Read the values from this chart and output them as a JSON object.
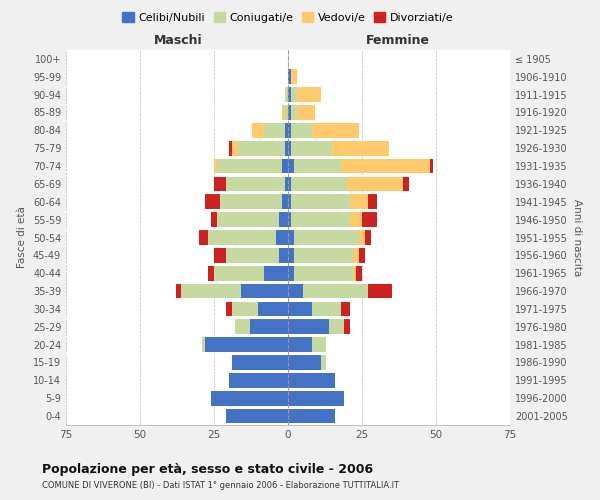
{
  "age_groups": [
    "0-4",
    "5-9",
    "10-14",
    "15-19",
    "20-24",
    "25-29",
    "30-34",
    "35-39",
    "40-44",
    "45-49",
    "50-54",
    "55-59",
    "60-64",
    "65-69",
    "70-74",
    "75-79",
    "80-84",
    "85-89",
    "90-94",
    "95-99",
    "100+"
  ],
  "birth_years": [
    "2001-2005",
    "1996-2000",
    "1991-1995",
    "1986-1990",
    "1981-1985",
    "1976-1980",
    "1971-1975",
    "1966-1970",
    "1961-1965",
    "1956-1960",
    "1951-1955",
    "1946-1950",
    "1941-1945",
    "1936-1940",
    "1931-1935",
    "1926-1930",
    "1921-1925",
    "1916-1920",
    "1911-1915",
    "1906-1910",
    "≤ 1905"
  ],
  "maschi": {
    "celibi": [
      21,
      26,
      20,
      19,
      28,
      13,
      10,
      16,
      8,
      3,
      4,
      3,
      2,
      1,
      2,
      1,
      1,
      0,
      0,
      0,
      0
    ],
    "coniugati": [
      0,
      0,
      0,
      0,
      1,
      5,
      9,
      20,
      17,
      18,
      23,
      21,
      21,
      20,
      22,
      16,
      7,
      1,
      1,
      0,
      0
    ],
    "vedovi": [
      0,
      0,
      0,
      0,
      0,
      0,
      0,
      0,
      0,
      0,
      0,
      0,
      0,
      0,
      1,
      2,
      4,
      1,
      0,
      0,
      0
    ],
    "divorziati": [
      0,
      0,
      0,
      0,
      0,
      0,
      2,
      2,
      2,
      4,
      3,
      2,
      5,
      4,
      0,
      1,
      0,
      0,
      0,
      0,
      0
    ]
  },
  "femmine": {
    "nubili": [
      16,
      19,
      16,
      11,
      8,
      14,
      8,
      5,
      2,
      2,
      2,
      1,
      1,
      1,
      2,
      1,
      1,
      1,
      1,
      1,
      0
    ],
    "coniugate": [
      0,
      0,
      0,
      2,
      5,
      5,
      10,
      22,
      20,
      20,
      22,
      20,
      20,
      19,
      16,
      14,
      7,
      2,
      2,
      0,
      0
    ],
    "vedove": [
      0,
      0,
      0,
      0,
      0,
      0,
      0,
      0,
      1,
      2,
      2,
      4,
      6,
      19,
      30,
      19,
      16,
      6,
      8,
      2,
      0
    ],
    "divorziate": [
      0,
      0,
      0,
      0,
      0,
      2,
      3,
      8,
      2,
      2,
      2,
      5,
      3,
      2,
      1,
      0,
      0,
      0,
      0,
      0,
      0
    ]
  },
  "colors": {
    "celibi": "#4472c4",
    "coniugati": "#c5d9a0",
    "vedovi": "#ffc96e",
    "divorziati": "#cc2222"
  },
  "title": "Popolazione per età, sesso e stato civile - 2006",
  "subtitle": "COMUNE DI VIVERONE (BI) - Dati ISTAT 1° gennaio 2006 - Elaborazione TUTTITALIA.IT",
  "ylabel_left": "Fasce di età",
  "ylabel_right": "Anni di nascita",
  "xlabel_maschi": "Maschi",
  "xlabel_femmine": "Femmine",
  "xlim": 75,
  "legend_labels": [
    "Celibi/Nubili",
    "Coniugati/e",
    "Vedovi/e",
    "Divorziati/e"
  ],
  "bg_color": "#f0f0f0",
  "plot_bg_color": "#ffffff"
}
